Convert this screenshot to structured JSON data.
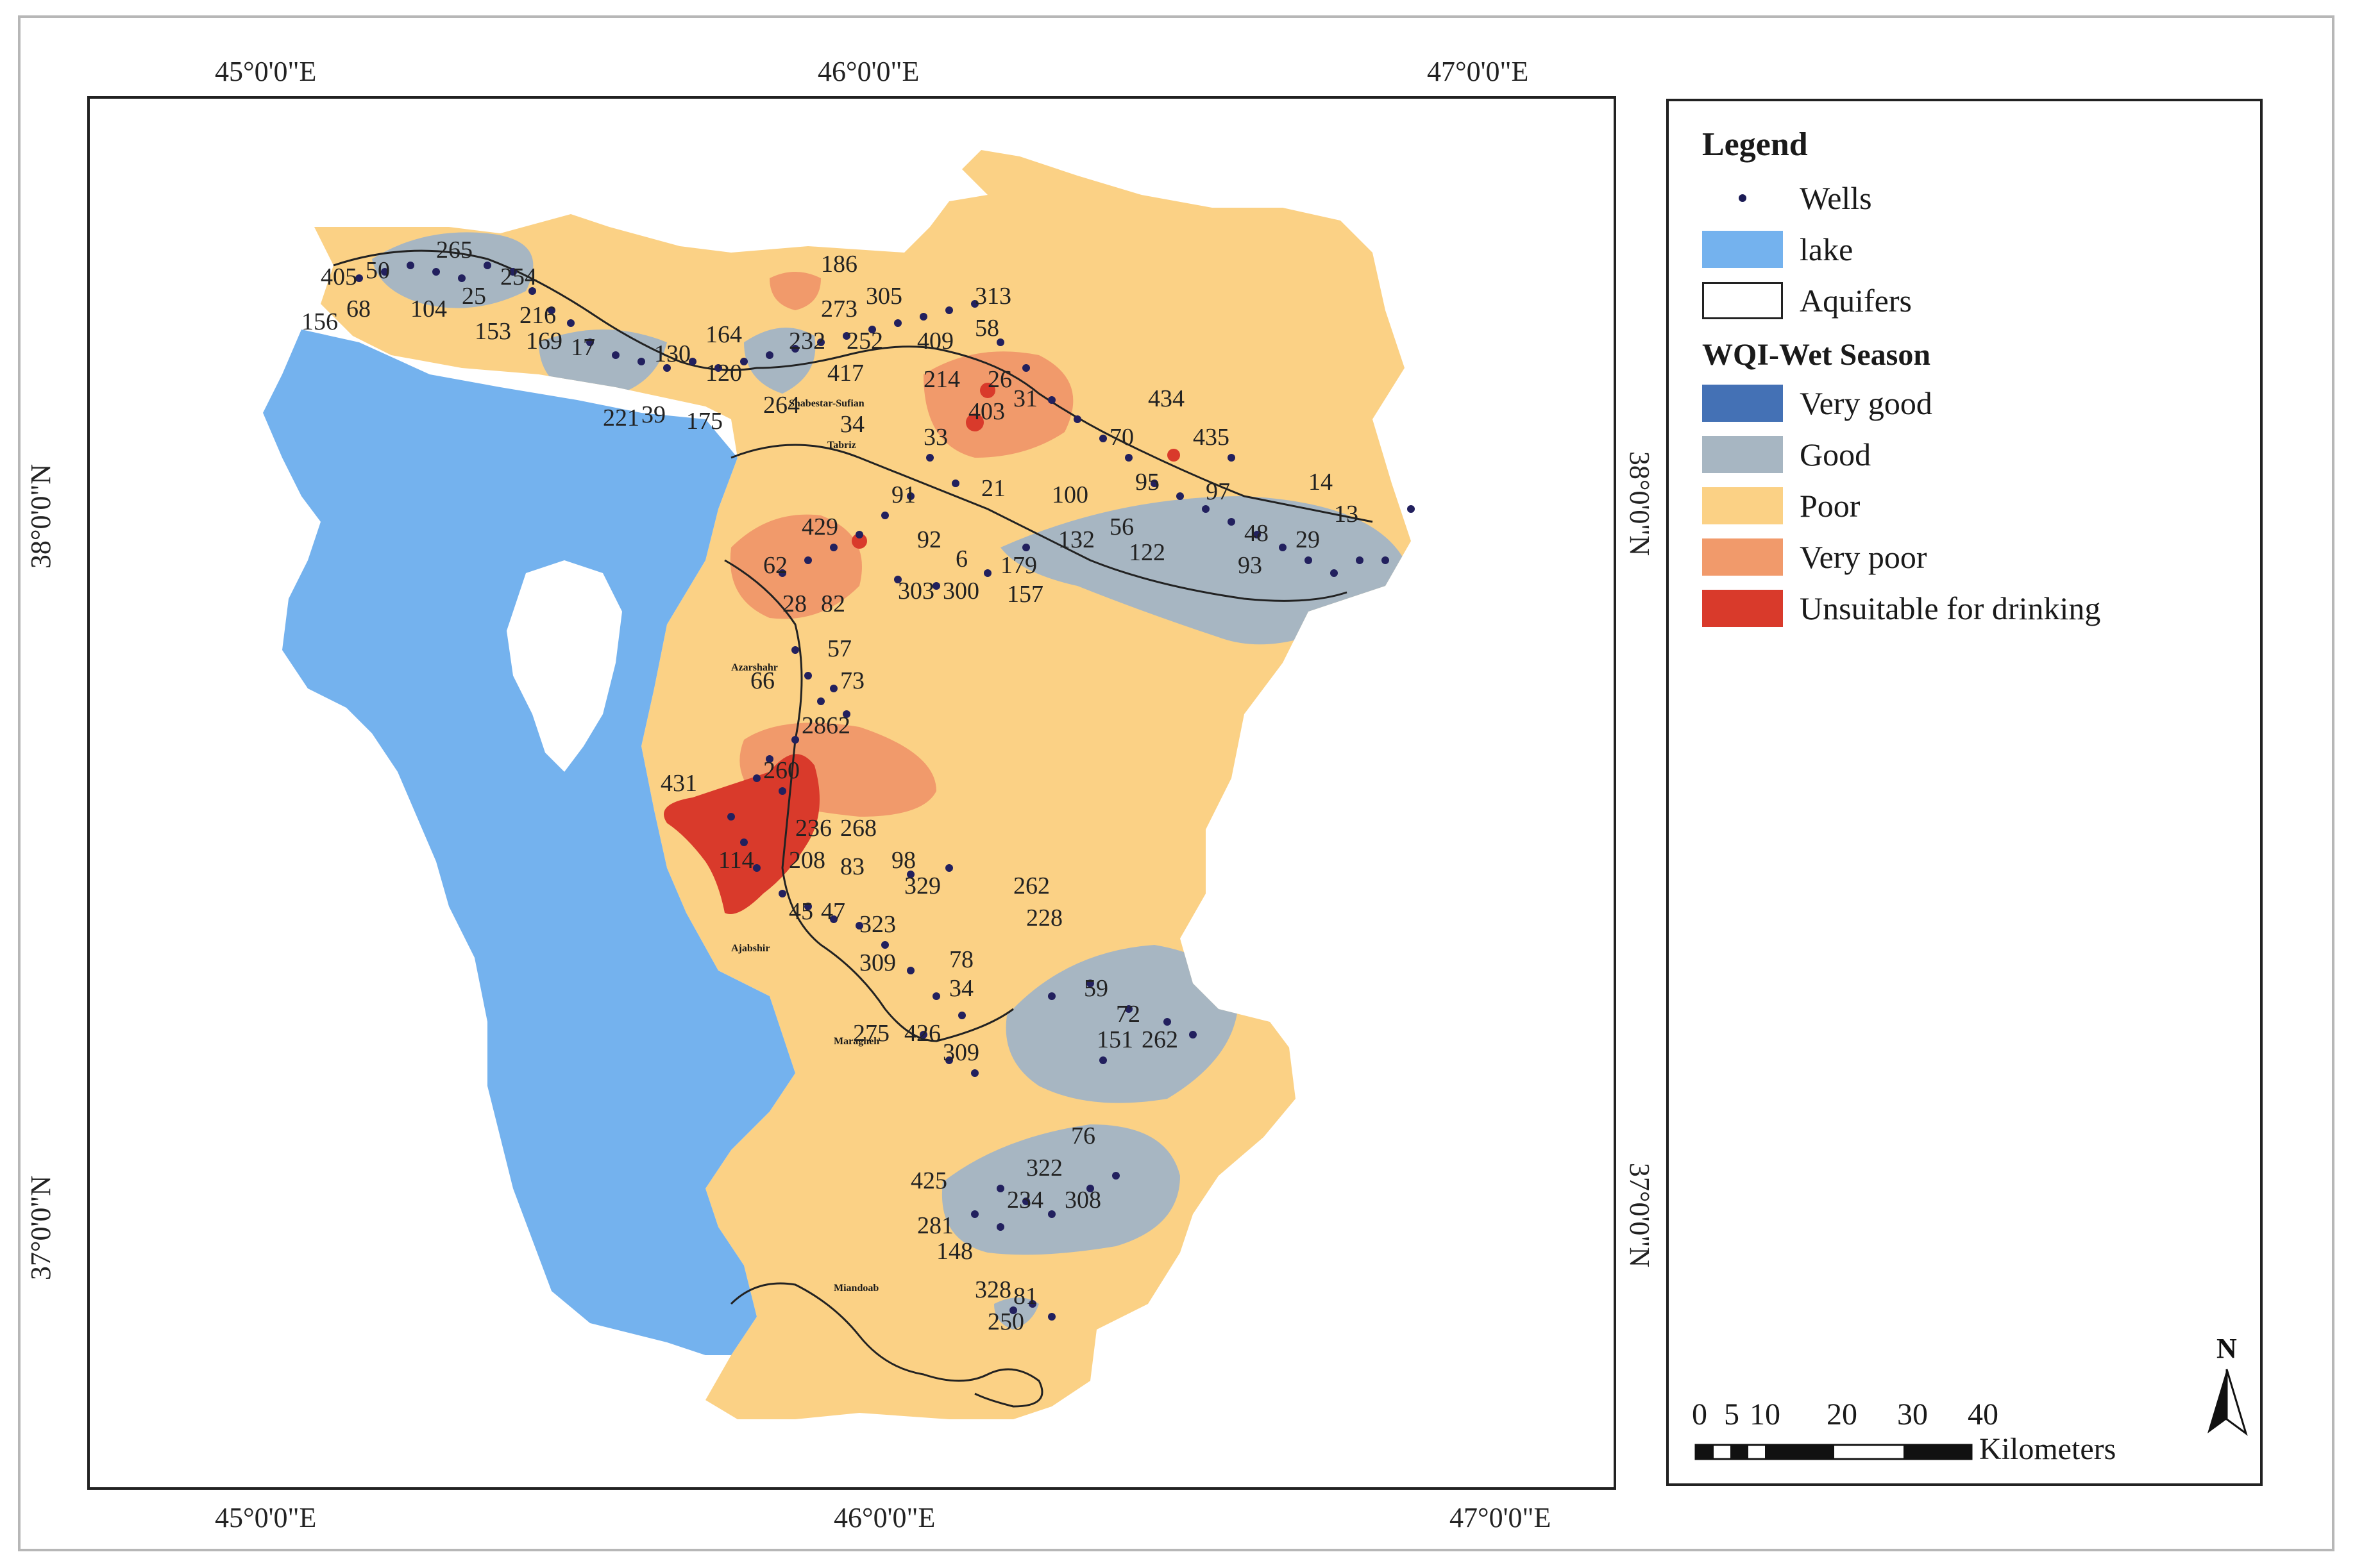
{
  "colors": {
    "lake": "#74b2ee",
    "very_good": "#4471b5",
    "good": "#a7b6c2",
    "poor": "#fbd185",
    "very_poor": "#f19a6b",
    "unsuitable": "#d93a2b",
    "well": "#22205e"
  },
  "axes": {
    "top_labels": [
      "45°0'0\"E",
      "46°0'0\"E",
      "47°0'0\"E"
    ],
    "bottom_labels": [
      "45°0'0\"E",
      "46°0'0\"E",
      "47°0'0\"E"
    ],
    "left_labels": [
      "38°0'0\"N",
      "37°0'0\"N"
    ],
    "right_labels": [
      "38°0'0\"N",
      "37°0'0\"N"
    ]
  },
  "legend": {
    "title": "Legend",
    "wells": "Wells",
    "lake": "lake",
    "aquifers": "Aquifers",
    "section_title": "WQI-Wet Season",
    "classes": [
      {
        "label": "Very good",
        "color": "#4471b5"
      },
      {
        "label": "Good",
        "color": "#a7b6c2"
      },
      {
        "label": "Poor",
        "color": "#fbd185"
      },
      {
        "label": "Very poor",
        "color": "#f19a6b"
      },
      {
        "label": "Unsuitable for drinking",
        "color": "#d93a2b"
      }
    ]
  },
  "scale": {
    "ticks": [
      "0",
      "5",
      "10",
      "20",
      "30",
      "40"
    ],
    "unit": "Kilometers"
  },
  "north_label": "N",
  "cities": [
    "Shabestar-Sufian",
    "Tabriz",
    "Azarshahr",
    "Ajabshir",
    "Maragheh",
    "Miandoab"
  ],
  "well_labels": [
    "265",
    "405",
    "50",
    "254",
    "156",
    "68",
    "104",
    "25",
    "216",
    "153",
    "169",
    "17",
    "186",
    "273",
    "305",
    "313",
    "58",
    "164",
    "130",
    "120",
    "232",
    "252",
    "409",
    "417",
    "214",
    "26",
    "221",
    "175",
    "39",
    "264",
    "403",
    "31",
    "434",
    "34",
    "33",
    "70",
    "435",
    "91",
    "21",
    "100",
    "95",
    "97",
    "14",
    "13",
    "429",
    "92",
    "6",
    "179",
    "56",
    "48",
    "132",
    "122",
    "29",
    "93",
    "62",
    "303",
    "300",
    "157",
    "28",
    "82",
    "57",
    "66",
    "73",
    "2862",
    "431",
    "260",
    "236",
    "268",
    "114",
    "208",
    "83",
    "98",
    "329",
    "45",
    "47",
    "323",
    "262",
    "228",
    "309",
    "78",
    "34",
    "59",
    "72",
    "151",
    "262",
    "275",
    "426",
    "309",
    "76",
    "322",
    "425",
    "234",
    "308",
    "281",
    "148",
    "328",
    "81",
    "250"
  ]
}
